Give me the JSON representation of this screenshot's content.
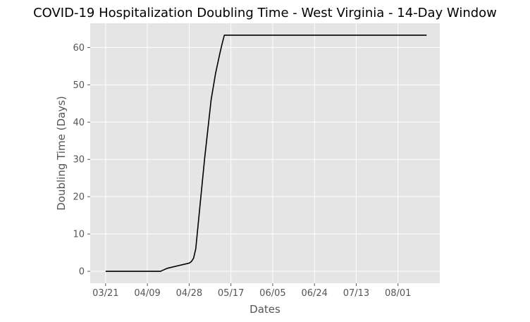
{
  "chart_data": {
    "type": "line",
    "title": "COVID-19 Hospitalization Doubling Time - West Virginia - 14-Day Window",
    "xlabel": "Dates",
    "ylabel": "Doubling Time (Days)",
    "x_ticks": [
      "03/21",
      "04/09",
      "04/28",
      "05/17",
      "06/05",
      "06/24",
      "07/13",
      "08/01"
    ],
    "y_ticks": [
      0,
      10,
      20,
      30,
      40,
      50,
      60
    ],
    "xlim": [
      "2020-03-14",
      "2020-08-20"
    ],
    "ylim": [
      -3.2,
      66.5
    ],
    "grid": true,
    "style": "ggplot",
    "series": [
      {
        "color": "#000000",
        "points": [
          {
            "x": "2020-03-21",
            "y": 0
          },
          {
            "x": "2020-04-15",
            "y": 0
          },
          {
            "x": "2020-04-18",
            "y": 0.8
          },
          {
            "x": "2020-04-28",
            "y": 2.2
          },
          {
            "x": "2020-04-29",
            "y": 2.6
          },
          {
            "x": "2020-04-30",
            "y": 3.5
          },
          {
            "x": "2020-05-01",
            "y": 6
          },
          {
            "x": "2020-05-02",
            "y": 12
          },
          {
            "x": "2020-05-05",
            "y": 30
          },
          {
            "x": "2020-05-08",
            "y": 46
          },
          {
            "x": "2020-05-10",
            "y": 53
          },
          {
            "x": "2020-05-12",
            "y": 58.5
          },
          {
            "x": "2020-05-13",
            "y": 61
          },
          {
            "x": "2020-05-14",
            "y": 63.3
          },
          {
            "x": "2020-08-14",
            "y": 63.3
          }
        ]
      }
    ]
  }
}
